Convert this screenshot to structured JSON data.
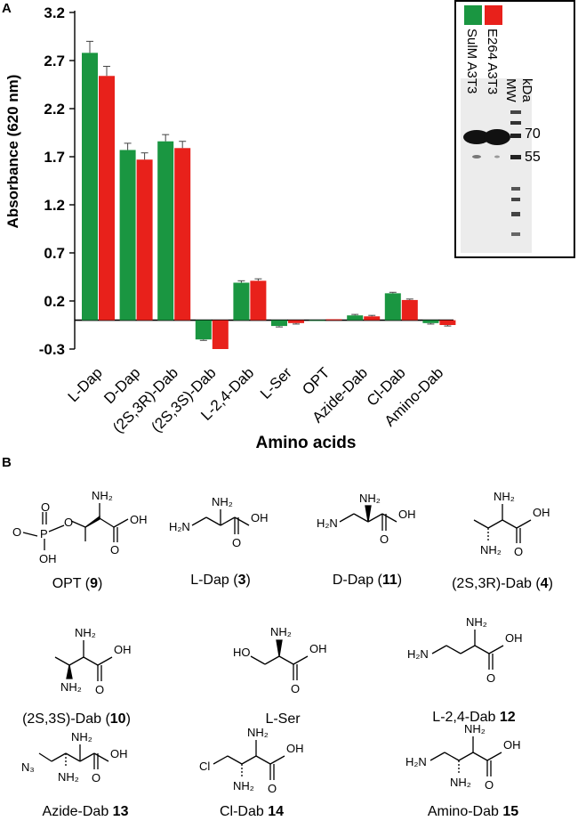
{
  "panel_a": {
    "label": "A",
    "chart_data": {
      "type": "bar",
      "title": "",
      "xlabel": "Amino acids",
      "ylabel": "Absorbance (620 nm)",
      "ylim": [
        -0.3,
        3.2
      ],
      "yticks": [
        -0.3,
        0.2,
        0.7,
        1.2,
        1.7,
        2.2,
        2.7,
        3.2
      ],
      "ytick_labels": [
        "-0.3",
        "0.2",
        "0.7",
        "1.2",
        "1.7",
        "2.2",
        "2.7",
        "3.2"
      ],
      "categories": [
        "L-Dap",
        "D-Dap",
        "(2S,3R)-Dab",
        "(2S,3S)-Dab",
        "L-2,4-Dab",
        "L-Ser",
        "OPT",
        "Azide-Dab",
        "Cl-Dab",
        "Amino-Dab"
      ],
      "series": [
        {
          "color": "#1a9641",
          "values": [
            2.78,
            1.77,
            1.86,
            -0.2,
            0.39,
            -0.06,
            0.0,
            0.05,
            0.28,
            -0.03
          ],
          "errors": [
            0.12,
            0.07,
            0.07,
            0.01,
            0.02,
            0.01,
            0.0,
            0.01,
            0.01,
            0.01
          ]
        },
        {
          "color": "#e8211b",
          "values": [
            2.54,
            1.67,
            1.79,
            -0.3,
            0.41,
            -0.03,
            0.01,
            0.04,
            0.21,
            -0.05
          ],
          "errors": [
            0.1,
            0.07,
            0.07,
            0.0,
            0.02,
            0.01,
            0.0,
            0.01,
            0.01,
            0.01
          ]
        }
      ],
      "legend": "top-right inset (gel image)",
      "grid": false
    },
    "gel": {
      "lanes": [
        "SulM A3T3",
        "E264 A3T3",
        "MW"
      ],
      "unit": "kDa",
      "markers": [
        "70",
        "55"
      ],
      "swatch_colors": [
        "#1a9641",
        "#e8211b"
      ]
    }
  },
  "panel_b": {
    "label": "B",
    "compounds": [
      {
        "pre": "OPT (",
        "num": "9",
        "post": ")"
      },
      {
        "pre": "L-Dap (",
        "num": "3",
        "post": ")"
      },
      {
        "pre": "D-Dap (",
        "num": "11",
        "post": ")"
      },
      {
        "pre": "(2S,3R)-Dab (",
        "num": "4",
        "post": ")"
      },
      {
        "pre": "(2S,3S)-Dab (",
        "num": "10",
        "post": ")"
      },
      {
        "pre": "L-Ser",
        "num": "",
        "post": ""
      },
      {
        "pre": "L-2,4-Dab ",
        "num": "12",
        "post": ""
      },
      {
        "pre": "Azide-Dab ",
        "num": "13",
        "post": ""
      },
      {
        "pre": "Cl-Dab ",
        "num": "14",
        "post": ""
      },
      {
        "pre": "Amino-Dab ",
        "num": "15",
        "post": ""
      }
    ],
    "atoms": {
      "nh2": "NH₂",
      "h2n": "H₂N",
      "oh": "OH",
      "o": "O",
      "p": "P",
      "ho": "HO",
      "n3": "N₃",
      "cl": "Cl"
    }
  }
}
